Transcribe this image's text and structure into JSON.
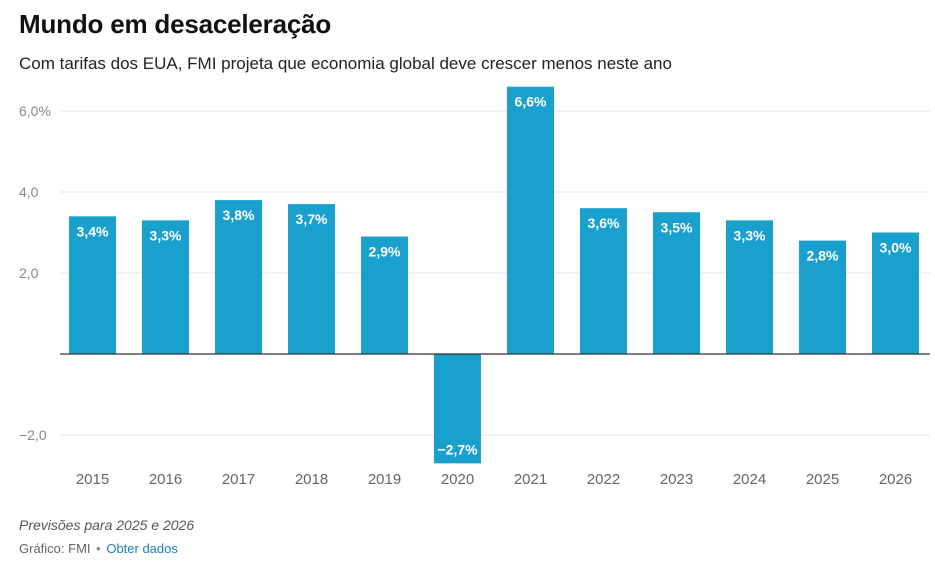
{
  "header": {
    "title": "Mundo em desaceleração",
    "subtitle": "Com tarifas dos EUA, FMI projeta que economia global deve crescer menos neste ano"
  },
  "footer": {
    "note": "Previsões para 2025 e 2026",
    "source_label": "Gráfico: FMI",
    "separator": "•",
    "get_data_link": "Obter dados"
  },
  "colors": {
    "bar": "#1aa0cc",
    "grid": "#e6e6e6",
    "zero_line": "#333333",
    "tick_text": "#888888",
    "category_text": "#666666",
    "label_text": "#ffffff"
  },
  "chart_data": {
    "type": "bar",
    "categories": [
      "2015",
      "2016",
      "2017",
      "2018",
      "2019",
      "2020",
      "2021",
      "2022",
      "2023",
      "2024",
      "2025",
      "2026"
    ],
    "values": [
      3.4,
      3.3,
      3.8,
      3.7,
      2.9,
      -2.7,
      6.6,
      3.6,
      3.5,
      3.3,
      2.8,
      3.0
    ],
    "data_labels": [
      "3,4%",
      "3,3%",
      "3,8%",
      "3,7%",
      "2,9%",
      "−2,7%",
      "6,6%",
      "3,6%",
      "3,5%",
      "3,3%",
      "2,8%",
      "3,0%"
    ],
    "yticks": [
      {
        "value": 6,
        "label": "6,0%"
      },
      {
        "value": 4,
        "label": "4,0"
      },
      {
        "value": 2,
        "label": "2,0"
      },
      {
        "value": -2,
        "label": "−2,0"
      }
    ],
    "ylim": [
      -2.7,
      6.6
    ],
    "grid": true,
    "legend": "none",
    "title": "Mundo em desaceleração",
    "subtitle": "Com tarifas dos EUA, FMI projeta que economia global deve crescer menos neste ano"
  }
}
